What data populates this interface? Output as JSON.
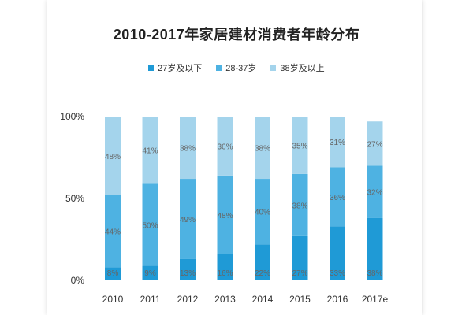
{
  "chart_data": {
    "type": "bar",
    "stacked": true,
    "title": "2010-2017年家居建材消费者年龄分布",
    "categories": [
      "2010",
      "2011",
      "2012",
      "2013",
      "2014",
      "2015",
      "2016",
      "2017e"
    ],
    "series": [
      {
        "name": "27岁及以下",
        "color": "#1f9ad6",
        "values": [
          8,
          9,
          13,
          16,
          22,
          27,
          33,
          38
        ]
      },
      {
        "name": "28-37岁",
        "color": "#4eb2e2",
        "values": [
          44,
          50,
          49,
          48,
          40,
          38,
          36,
          32
        ]
      },
      {
        "name": "38岁及以上",
        "color": "#a4d4ec",
        "values": [
          48,
          41,
          38,
          36,
          38,
          35,
          31,
          27
        ]
      }
    ],
    "ylim": [
      0,
      100
    ],
    "yticks": [
      "0%",
      "50%",
      "100%"
    ],
    "ytick_values": [
      0,
      50,
      100
    ],
    "legend_position": "top",
    "grid": false,
    "value_suffix": "%"
  }
}
